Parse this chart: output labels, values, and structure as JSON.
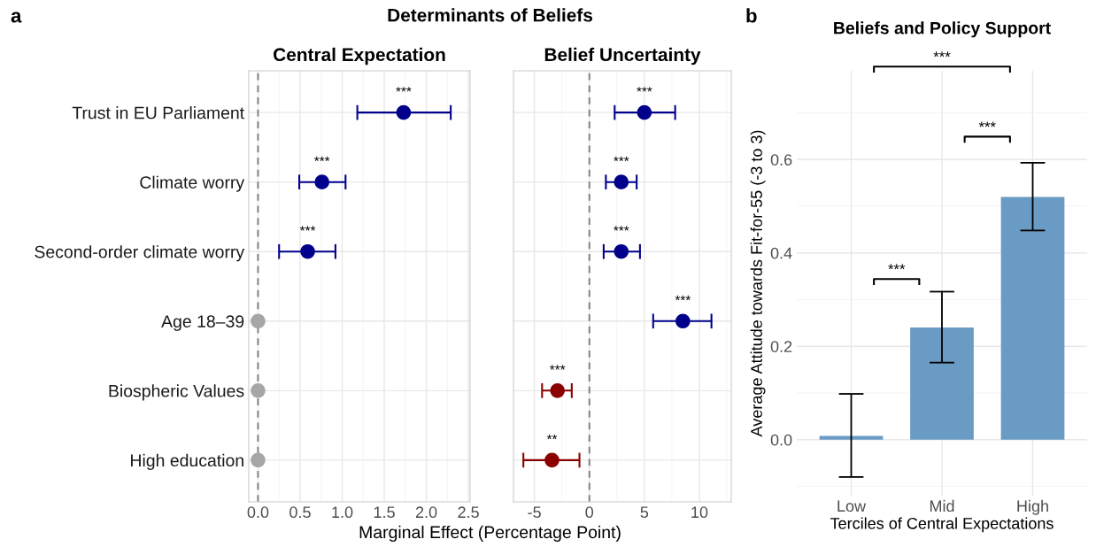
{
  "chart_data": [
    {
      "type": "scatter",
      "orientation": "horizontal",
      "title": "Central Expectation",
      "xlabel": "Marginal Effect (Percentage Point)",
      "categories": [
        "Trust in EU Parliament",
        "Climate worry",
        "Second-order climate worry",
        "Age 18–39",
        "Biospheric Values",
        "High education"
      ],
      "values": [
        1.73,
        0.76,
        0.59,
        0,
        0,
        0
      ],
      "errors": [
        [
          1.18,
          2.29
        ],
        [
          0.49,
          1.04
        ],
        [
          0.25,
          0.92
        ],
        null,
        null,
        null
      ],
      "colors": [
        "#00008b",
        "#00008b",
        "#00008b",
        "#a6a6a6",
        "#a6a6a6",
        "#a6a6a6"
      ],
      "xlim": [
        -0.11,
        2.52
      ],
      "xticks": [
        {
          "value": 0,
          "label": "0.0"
        },
        0.5,
        {
          "value": 1,
          "label": "1.0"
        },
        1.5,
        {
          "value": 2,
          "label": "2.0"
        },
        2.5
      ],
      "ref_lines": [
        {
          "axis": "x",
          "value": 0,
          "color": "#7f7f7f",
          "line_style": "dashed"
        }
      ],
      "grid": true,
      "marker": "circle",
      "annotations": [
        "a",
        "Determinants of Beliefs",
        {
          "text": "***",
          "x": 1.73,
          "y": "Trust in EU Parliament"
        },
        {
          "text": "***",
          "x": 0.76,
          "y": "Climate worry"
        },
        {
          "text": "***",
          "x": 0.59,
          "y": "Second-order climate worry"
        }
      ]
    },
    {
      "type": "scatter",
      "orientation": "horizontal",
      "title": "Belief Uncertainty",
      "categories": [
        "Trust in EU Parliament",
        "Climate worry",
        "Second-order climate worry",
        "Age 18–39",
        "Biospheric Values",
        "High education"
      ],
      "values": [
        5.0,
        2.9,
        2.9,
        8.5,
        -2.9,
        -3.4
      ],
      "errors": [
        [
          2.3,
          7.8
        ],
        [
          1.5,
          4.3
        ],
        [
          1.3,
          4.6
        ],
        [
          5.8,
          11.1
        ],
        [
          -4.3,
          -1.6
        ],
        [
          -6.0,
          -0.9
        ]
      ],
      "colors": [
        "#00008b",
        "#00008b",
        "#00008b",
        "#00008b",
        "#8b0000",
        "#8b0000"
      ],
      "xlim": [
        -6.9,
        12.9
      ],
      "xticks": [
        -5,
        0,
        5,
        10
      ],
      "tick_labels": "x",
      "ref_lines": [
        {
          "axis": "x",
          "value": 0,
          "color": "#7f7f7f",
          "line_style": "dashed"
        }
      ],
      "grid": true,
      "marker": "circle",
      "annotations": [
        {
          "text": "***",
          "x": 5.0,
          "y": "Trust in EU Parliament"
        },
        {
          "text": "***",
          "x": 2.9,
          "y": "Climate worry"
        },
        {
          "text": "***",
          "x": 2.9,
          "y": "Second-order climate worry"
        },
        {
          "text": "***",
          "x": 8.5,
          "y": "Age 18–39"
        },
        {
          "text": "***",
          "x": -2.9,
          "y": "Biospheric Values"
        },
        {
          "text": "**",
          "x": -3.4,
          "y": "High education"
        }
      ]
    },
    {
      "type": "bar",
      "title": "Beliefs and Policy Support",
      "xlabel": "Terciles of Central Expectations",
      "ylabel": "Average Attitude towards Fit-for-55 (-3 to 3)",
      "categories": [
        "Low",
        "Mid",
        "High"
      ],
      "values": [
        0.008,
        0.24,
        0.52
      ],
      "errors": [
        [
          -0.08,
          0.098
        ],
        [
          0.165,
          0.317
        ],
        [
          0.448,
          0.593
        ]
      ],
      "color": "#6a9bc4",
      "ylim": [
        -0.12,
        0.79
      ],
      "yticks": [
        {
          "value": 0,
          "label": "0.0"
        },
        0.2,
        0.4,
        0.6
      ],
      "grid": true,
      "annotations": [
        "b",
        "***",
        "***",
        "***"
      ]
    }
  ]
}
